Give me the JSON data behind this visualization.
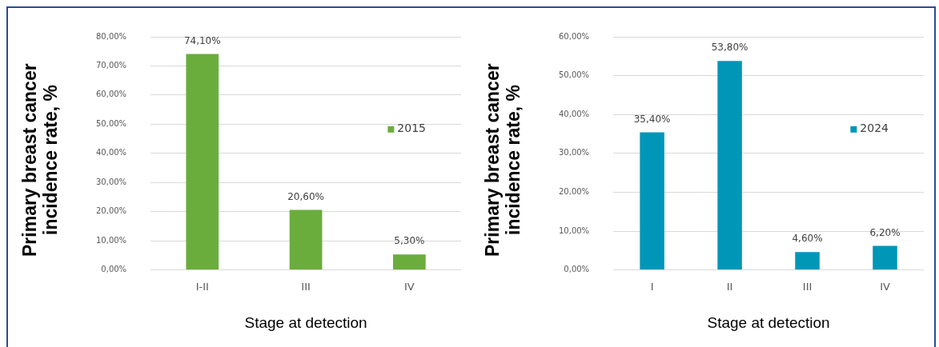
{
  "chart_data": [
    {
      "type": "bar",
      "xlabel": "Stage at detection",
      "ylabel": "Primary breast cancer incidence rate, %",
      "categories": [
        "I-II",
        "III",
        "IV"
      ],
      "series": [
        {
          "name": "2015",
          "color": "#6aad3d",
          "values": [
            74.1,
            20.6,
            5.3
          ],
          "value_labels": [
            "74,10%",
            "20,60%",
            "5,30%"
          ]
        }
      ],
      "ylim": [
        0,
        80
      ],
      "yticks": [
        {
          "value": 0,
          "label": "0,00%"
        },
        {
          "value": 10,
          "label": "10,00%"
        },
        {
          "value": 20,
          "label": "20,00%"
        },
        {
          "value": 30,
          "label": "30,00%"
        },
        {
          "value": 40,
          "label": "40,00%"
        },
        {
          "value": 50,
          "label": "50,00%"
        },
        {
          "value": 60,
          "label": "60,00%"
        },
        {
          "value": 70,
          "label": "70,00%"
        },
        {
          "value": 80,
          "label": "80,00%"
        }
      ],
      "grid": "y",
      "legend": "right"
    },
    {
      "type": "bar",
      "xlabel": "Stage at detection",
      "ylabel": "Primary breast cancer incidence rate, %",
      "categories": [
        "I",
        "II",
        "III",
        "IV"
      ],
      "series": [
        {
          "name": "2024",
          "color": "#0096b8",
          "values": [
            35.4,
            53.8,
            4.6,
            6.2
          ],
          "value_labels": [
            "35,40%",
            "53,80%",
            "4,60%",
            "6,20%"
          ]
        }
      ],
      "ylim": [
        0,
        60
      ],
      "yticks": [
        {
          "value": 0,
          "label": "0,00%"
        },
        {
          "value": 10,
          "label": "10,00%"
        },
        {
          "value": 20,
          "label": "20,00%"
        },
        {
          "value": 30,
          "label": "30,00%"
        },
        {
          "value": 40,
          "label": "40,00%"
        },
        {
          "value": 50,
          "label": "50,00%"
        },
        {
          "value": 60,
          "label": "60,00%"
        }
      ],
      "grid": "y",
      "legend": "right"
    }
  ]
}
